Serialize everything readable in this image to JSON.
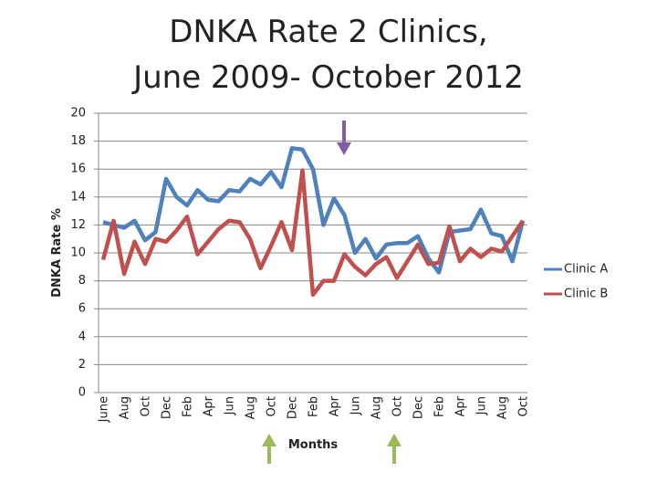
{
  "chart_data": {
    "type": "line",
    "title": [
      "DNKA Rate 2 Clinics,",
      "June 2009- October 2012"
    ],
    "x_label": "Months",
    "y_label": "DNKA Rate %",
    "categories": [
      "June",
      null,
      "Aug",
      null,
      "Oct",
      null,
      "Dec",
      null,
      "Feb",
      null,
      "Apr",
      null,
      "Jun",
      null,
      "Aug",
      null,
      "Oct",
      null,
      "Dec",
      null,
      "Feb",
      null,
      "Apr",
      null,
      "Jun",
      null,
      "Aug",
      null,
      "Oct",
      null,
      "Dec",
      null,
      "Feb",
      null,
      "Apr",
      null,
      "Jun",
      null,
      "Aug",
      null,
      "Oct"
    ],
    "series": [
      {
        "name": "Clinic A",
        "color": "#4f81bd",
        "values": [
          12.2,
          12.0,
          11.8,
          12.3,
          10.9,
          11.5,
          15.3,
          14.0,
          13.4,
          14.5,
          13.8,
          13.7,
          14.5,
          14.4,
          15.3,
          14.9,
          15.8,
          14.7,
          17.5,
          17.4,
          16.0,
          12.0,
          13.9,
          12.7,
          10.0,
          11.0,
          9.6,
          10.6,
          10.7,
          10.7,
          11.2,
          9.6,
          8.6,
          11.5,
          11.6,
          11.7,
          13.1,
          11.4,
          11.2,
          9.4,
          12.3
        ]
      },
      {
        "name": "Clinic B",
        "color": "#c0504d",
        "values": [
          9.5,
          12.3,
          8.5,
          10.8,
          9.2,
          11.0,
          10.8,
          11.6,
          12.6,
          9.9,
          10.8,
          11.7,
          12.3,
          12.2,
          11.0,
          8.9,
          10.5,
          12.2,
          10.2,
          15.9,
          7.0,
          8.0,
          8.0,
          9.9,
          9.0,
          8.4,
          9.2,
          9.7,
          8.2,
          9.4,
          10.6,
          9.2,
          9.3,
          11.9,
          9.4,
          10.3,
          9.7,
          10.3,
          10.1,
          11.2,
          12.3
        ]
      }
    ],
    "ylim": [
      0,
      20
    ],
    "yticks": [
      0,
      2,
      4,
      6,
      8,
      10,
      12,
      14,
      16,
      18,
      20
    ],
    "grid": true,
    "legend": "right"
  }
}
